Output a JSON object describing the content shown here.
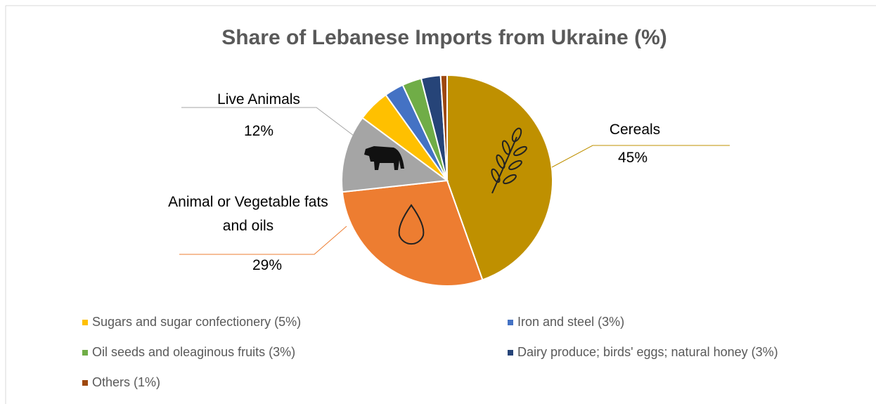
{
  "chart_data": {
    "type": "pie",
    "title": "Share of Lebanese Imports from Ukraine (%)",
    "categories": [
      "Cereals",
      "Animal or Vegetable fats and oils",
      "Live Animals",
      "Sugars and sugar confectionery (5%)",
      "Iron and steel (3%)",
      "Oil seeds and oleaginous fruits (3%)",
      "Dairy produce; birds' eggs; natural honey (3%)",
      "Others (1%)"
    ],
    "values": [
      45,
      29,
      12,
      5,
      3,
      3,
      3,
      1
    ],
    "value_labels": [
      "45%",
      "29%",
      "12%",
      null,
      null,
      null,
      null,
      null
    ],
    "colors": [
      "#bf9000",
      "#ed7d31",
      "#a5a5a5",
      "#ffc000",
      "#4472c4",
      "#70ad47",
      "#264478",
      "#9e480e"
    ],
    "legend": "bottom"
  }
}
